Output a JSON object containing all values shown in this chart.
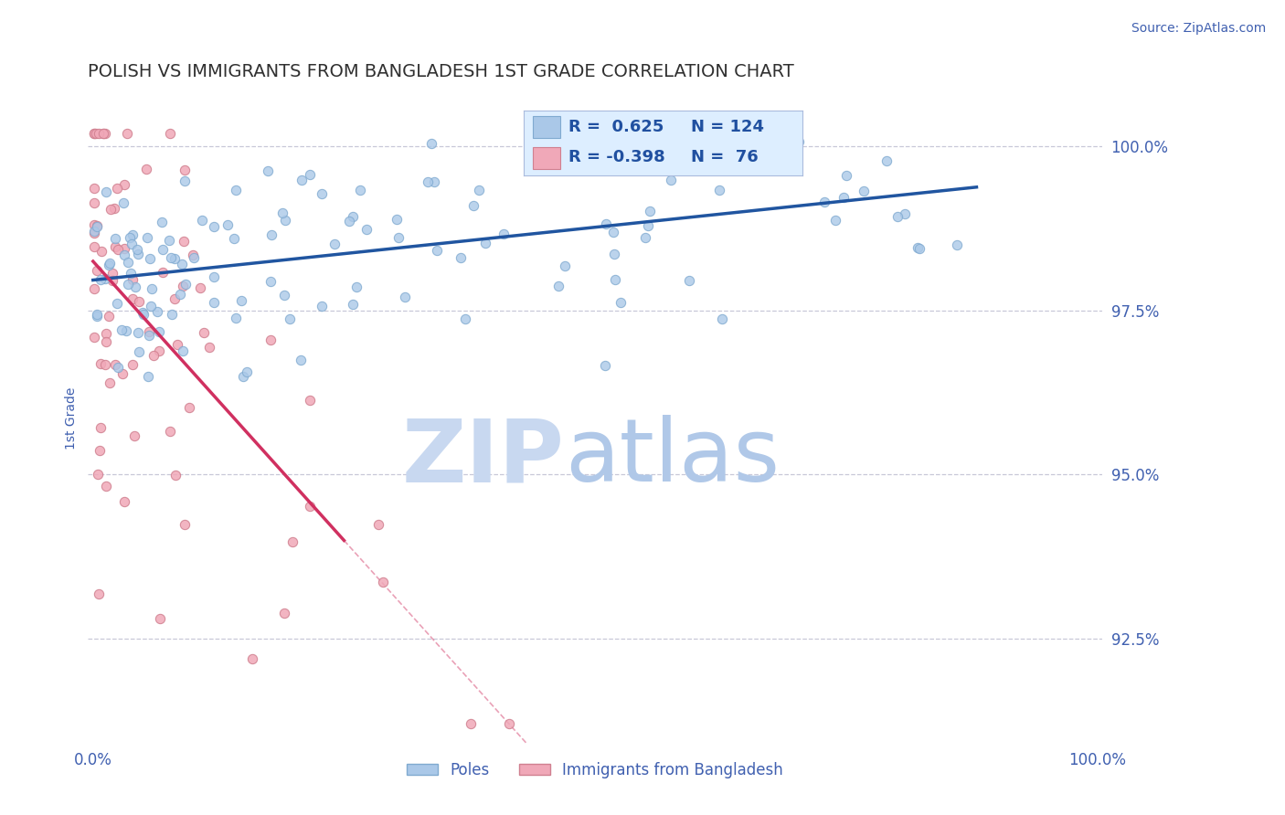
{
  "title": "POLISH VS IMMIGRANTS FROM BANGLADESH 1ST GRADE CORRELATION CHART",
  "source_text": "Source: ZipAtlas.com",
  "ylabel": "1st Grade",
  "x_min": 0.0,
  "x_max": 1.0,
  "y_min": 0.909,
  "y_max": 1.008,
  "yticks": [
    0.925,
    0.95,
    0.975,
    1.0
  ],
  "ytick_labels": [
    "92.5%",
    "95.0%",
    "97.5%",
    "100.0%"
  ],
  "xticks": [
    0.0,
    1.0
  ],
  "xtick_labels": [
    "0.0%",
    "100.0%"
  ],
  "blue_R": 0.625,
  "blue_N": 124,
  "pink_R": -0.398,
  "pink_N": 76,
  "blue_color": "#aac8e8",
  "blue_edge": "#80aad0",
  "blue_line_color": "#2055a0",
  "pink_color": "#f0a8b8",
  "pink_edge": "#d08090",
  "pink_line_color": "#d03060",
  "title_color": "#303030",
  "axis_color": "#4060b0",
  "grid_color": "#c8c8d8",
  "watermark_zip_color": "#c8d8f0",
  "watermark_atlas_color": "#b0c8e8",
  "legend_box_color": "#ddeeff",
  "legend_border_color": "#aabbdd",
  "legend_text_color": "#2050a0",
  "marker_size": 55
}
